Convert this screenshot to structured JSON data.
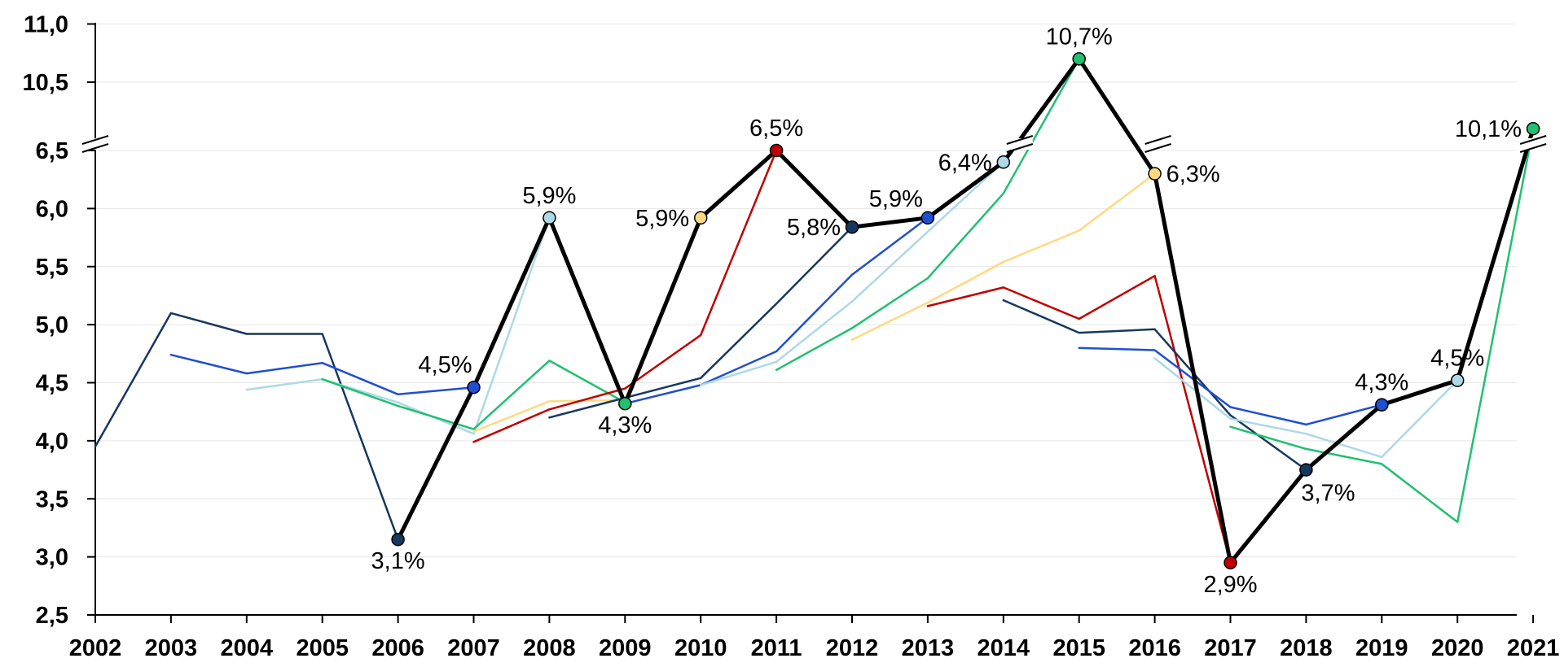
{
  "chart_data": {
    "type": "line",
    "title": "",
    "xlabel": "",
    "ylabel": "",
    "x": [
      "2002",
      "2003",
      "2004",
      "2005",
      "2006",
      "2007",
      "2008",
      "2009",
      "2010",
      "2011",
      "2012",
      "2013",
      "2014",
      "2015",
      "2016",
      "2017",
      "2018",
      "2019",
      "2020",
      "2021"
    ],
    "y_axis": {
      "broken": true,
      "upper_segment_ticks": [
        "10,5",
        "11,0"
      ],
      "lower_segment_ticks": [
        "2,5",
        "3,0",
        "3,5",
        "4,0",
        "4,5",
        "5,0",
        "5,5",
        "6,0",
        "6,5"
      ],
      "ylim": [
        2.5,
        11.0
      ]
    },
    "grid": true,
    "legend": "none",
    "series": [
      {
        "color": "#17375e",
        "values": [
          3.95,
          5.1,
          4.92,
          4.92,
          3.15,
          null,
          null,
          null,
          null,
          null,
          null,
          null,
          null,
          null,
          null,
          null,
          null,
          null,
          null,
          null
        ]
      },
      {
        "color": "#1f4fd1",
        "values": [
          null,
          4.74,
          4.58,
          4.67,
          4.4,
          4.46,
          null,
          null,
          null,
          null,
          null,
          null,
          null,
          null,
          null,
          null,
          null,
          null,
          null,
          null
        ]
      },
      {
        "color": "#add8e6",
        "values": [
          null,
          null,
          4.44,
          4.53,
          4.33,
          4.06,
          5.92,
          null,
          null,
          null,
          null,
          null,
          null,
          null,
          null,
          null,
          null,
          null,
          null,
          null
        ]
      },
      {
        "color": "#20c070",
        "values": [
          null,
          null,
          null,
          4.53,
          4.3,
          4.1,
          4.69,
          4.33,
          null,
          null,
          null,
          null,
          null,
          null,
          null,
          null,
          null,
          null,
          null,
          null
        ]
      },
      {
        "color": "#ffd980",
        "values": [
          null,
          null,
          null,
          null,
          null,
          4.08,
          4.34,
          4.35,
          5.92,
          null,
          null,
          null,
          null,
          null,
          null,
          null,
          null,
          null,
          null,
          null
        ]
      },
      {
        "color": "#c00000",
        "values": [
          null,
          null,
          null,
          null,
          null,
          3.99,
          4.27,
          4.45,
          4.91,
          6.5,
          null,
          null,
          null,
          null,
          null,
          null,
          null,
          null,
          null,
          null
        ]
      },
      {
        "color": "#17375e",
        "values": [
          null,
          null,
          null,
          null,
          null,
          null,
          4.2,
          4.37,
          4.54,
          5.18,
          5.84,
          null,
          null,
          null,
          null,
          null,
          null,
          null,
          null,
          null
        ]
      },
      {
        "color": "#1f4fd1",
        "values": [
          null,
          null,
          null,
          null,
          null,
          null,
          null,
          4.32,
          4.48,
          4.77,
          5.43,
          5.92,
          null,
          null,
          null,
          null,
          null,
          null,
          null,
          null
        ]
      },
      {
        "color": "#add8e6",
        "values": [
          null,
          null,
          null,
          null,
          null,
          null,
          null,
          null,
          4.48,
          4.68,
          5.2,
          5.8,
          6.4,
          null,
          null,
          null,
          null,
          null,
          null,
          null
        ]
      },
      {
        "color": "#20c070",
        "values": [
          null,
          null,
          null,
          null,
          null,
          null,
          null,
          null,
          null,
          4.61,
          4.97,
          5.4,
          6.13,
          10.7,
          null,
          null,
          null,
          null,
          null,
          null
        ]
      },
      {
        "color": "#ffd980",
        "values": [
          null,
          null,
          null,
          null,
          null,
          null,
          null,
          null,
          null,
          null,
          4.87,
          5.19,
          5.54,
          5.81,
          6.3,
          null,
          null,
          null,
          null,
          null
        ]
      },
      {
        "color": "#c00000",
        "values": [
          null,
          null,
          null,
          null,
          null,
          null,
          null,
          null,
          null,
          null,
          null,
          5.16,
          5.32,
          5.05,
          5.42,
          2.95,
          null,
          null,
          null,
          null
        ]
      },
      {
        "color": "#17375e",
        "values": [
          null,
          null,
          null,
          null,
          null,
          null,
          null,
          null,
          null,
          null,
          null,
          null,
          5.21,
          4.93,
          4.96,
          4.22,
          3.75,
          null,
          null,
          null
        ]
      },
      {
        "color": "#1f4fd1",
        "values": [
          null,
          null,
          null,
          null,
          null,
          null,
          null,
          null,
          null,
          null,
          null,
          null,
          null,
          4.8,
          4.78,
          4.29,
          4.14,
          4.31,
          null,
          null
        ]
      },
      {
        "color": "#add8e6",
        "values": [
          null,
          null,
          null,
          null,
          null,
          null,
          null,
          null,
          null,
          null,
          null,
          null,
          null,
          null,
          4.71,
          4.19,
          4.06,
          3.86,
          4.52,
          null
        ]
      },
      {
        "color": "#20c070",
        "values": [
          null,
          null,
          null,
          null,
          null,
          null,
          null,
          null,
          null,
          null,
          null,
          null,
          null,
          null,
          null,
          4.12,
          3.93,
          3.8,
          3.3,
          10.1
        ]
      },
      {
        "color": "#000000",
        "values": [
          null,
          null,
          null,
          null,
          3.15,
          4.46,
          5.92,
          4.32,
          5.92,
          6.5,
          5.84,
          5.92,
          6.4,
          10.7,
          6.3,
          2.95,
          3.75,
          4.31,
          4.52,
          10.1
        ]
      }
    ],
    "markers": [
      {
        "x": "2006",
        "value": 3.15,
        "color": "#17375e",
        "label": "3,1%",
        "pos": "below"
      },
      {
        "x": "2007",
        "value": 4.46,
        "color": "#1f4fd1",
        "label": "4,5%",
        "pos": "left-above"
      },
      {
        "x": "2008",
        "value": 5.92,
        "color": "#add8e6",
        "label": "5,9%",
        "pos": "above"
      },
      {
        "x": "2009",
        "value": 4.32,
        "color": "#20c070",
        "label": "4,3%",
        "pos": "below"
      },
      {
        "x": "2010",
        "value": 5.92,
        "color": "#ffd980",
        "label": "5,9%",
        "pos": "left"
      },
      {
        "x": "2011",
        "value": 6.5,
        "color": "#c00000",
        "label": "6,5%",
        "pos": "above"
      },
      {
        "x": "2012",
        "value": 5.84,
        "color": "#17375e",
        "label": "5,8%",
        "pos": "left"
      },
      {
        "x": "2013",
        "value": 5.92,
        "color": "#1f4fd1",
        "label": "5,9%",
        "pos": "above-left"
      },
      {
        "x": "2014",
        "value": 6.4,
        "color": "#add8e6",
        "label": "6,4%",
        "pos": "left"
      },
      {
        "x": "2015",
        "value": 10.7,
        "color": "#20c070",
        "label": "10,7%",
        "pos": "above"
      },
      {
        "x": "2016",
        "value": 6.3,
        "color": "#ffd980",
        "label": "6,3%",
        "pos": "right"
      },
      {
        "x": "2017",
        "value": 2.95,
        "color": "#c00000",
        "label": "2,9%",
        "pos": "below"
      },
      {
        "x": "2018",
        "value": 3.75,
        "color": "#17375e",
        "label": "3,7%",
        "pos": "below-right"
      },
      {
        "x": "2019",
        "value": 4.31,
        "color": "#1f4fd1",
        "label": "4,3%",
        "pos": "above"
      },
      {
        "x": "2020",
        "value": 4.52,
        "color": "#add8e6",
        "label": "4,5%",
        "pos": "above"
      },
      {
        "x": "2021",
        "value": 10.1,
        "color": "#20c070",
        "label": "10,1%",
        "pos": "left"
      }
    ]
  }
}
